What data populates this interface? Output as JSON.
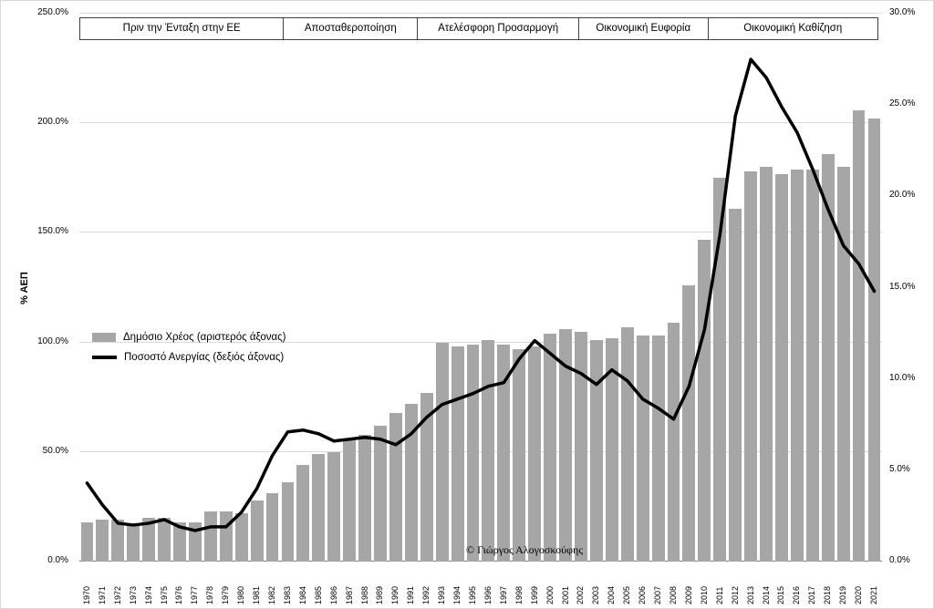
{
  "figure": {
    "copyright": "© Γιώργος Αλογοσκούφης"
  },
  "chart_data": {
    "type": "bar",
    "subtype": "combo bar+line, dual axis",
    "grid": "horizontal",
    "legend_position": "inside-left-middle",
    "categories": [
      "1970",
      "1971",
      "1972",
      "1973",
      "1974",
      "1975",
      "1976",
      "1977",
      "1978",
      "1979",
      "1980",
      "1981",
      "1982",
      "1983",
      "1984",
      "1985",
      "1986",
      "1987",
      "1988",
      "1989",
      "1990",
      "1991",
      "1992",
      "1993",
      "1994",
      "1995",
      "1996",
      "1997",
      "1998",
      "1999",
      "2000",
      "2001",
      "2002",
      "2003",
      "2004",
      "2005",
      "2006",
      "2007",
      "2008",
      "2009",
      "2010",
      "2011",
      "2012",
      "2013",
      "2014",
      "2015",
      "2016",
      "2017",
      "2018",
      "2019",
      "2020",
      "2021"
    ],
    "series": [
      {
        "name": "Δημόσιο Χρέος (αριστερός άξονας)",
        "type": "bar",
        "axis": "left",
        "color": "#a6a6a6",
        "values": [
          18,
          19,
          19,
          17,
          20,
          20,
          18,
          18,
          23,
          23,
          22,
          28,
          31,
          36,
          44,
          49,
          50,
          56,
          58,
          62,
          68,
          72,
          77,
          100,
          98,
          99,
          101,
          99,
          97,
          98,
          104,
          106,
          105,
          101,
          102,
          107,
          103,
          103,
          109,
          126,
          147,
          175,
          161,
          178,
          180,
          177,
          179,
          179,
          186,
          180,
          206,
          202
        ]
      },
      {
        "name": "Ποσοστό Ανεργίας (δεξιός άξονας)",
        "type": "line",
        "axis": "right",
        "color": "#000000",
        "values": [
          4.3,
          3.1,
          2.1,
          2.0,
          2.1,
          2.3,
          1.9,
          1.7,
          1.9,
          1.9,
          2.7,
          4.0,
          5.8,
          7.1,
          7.2,
          7.0,
          6.6,
          6.7,
          6.8,
          6.7,
          6.4,
          7.0,
          7.9,
          8.6,
          8.9,
          9.2,
          9.6,
          9.8,
          11.1,
          12.1,
          11.4,
          10.7,
          10.3,
          9.7,
          10.5,
          9.9,
          8.9,
          8.4,
          7.8,
          9.6,
          12.7,
          17.9,
          24.4,
          27.5,
          26.5,
          24.9,
          23.5,
          21.5,
          19.3,
          17.3,
          16.3,
          14.8
        ]
      }
    ],
    "left_axis": {
      "label": "% ΑΕΠ",
      "min": 0,
      "max": 250,
      "ticks": [
        "0.0%",
        "50.0%",
        "100.0%",
        "150.0%",
        "200.0%",
        "250.0%"
      ]
    },
    "right_axis": {
      "min": 0,
      "max": 30,
      "ticks": [
        "0.0%",
        "5.0%",
        "10.0%",
        "15.0%",
        "20.0%",
        "25.0%",
        "30.0%"
      ]
    },
    "bands": [
      {
        "label": "Πριν την Ένταξη στην ΕΕ",
        "width_pct": 25.5
      },
      {
        "label": "Αποσταθεροποίηση",
        "width_pct": 16.8
      },
      {
        "label": "Ατελέσφορη Προσαρμογή",
        "width_pct": 20.2
      },
      {
        "label": "Οικονομική Ευφορία",
        "width_pct": 16.2
      },
      {
        "label": "Οικονομική Καθίζηση",
        "width_pct": 21.3
      }
    ]
  }
}
